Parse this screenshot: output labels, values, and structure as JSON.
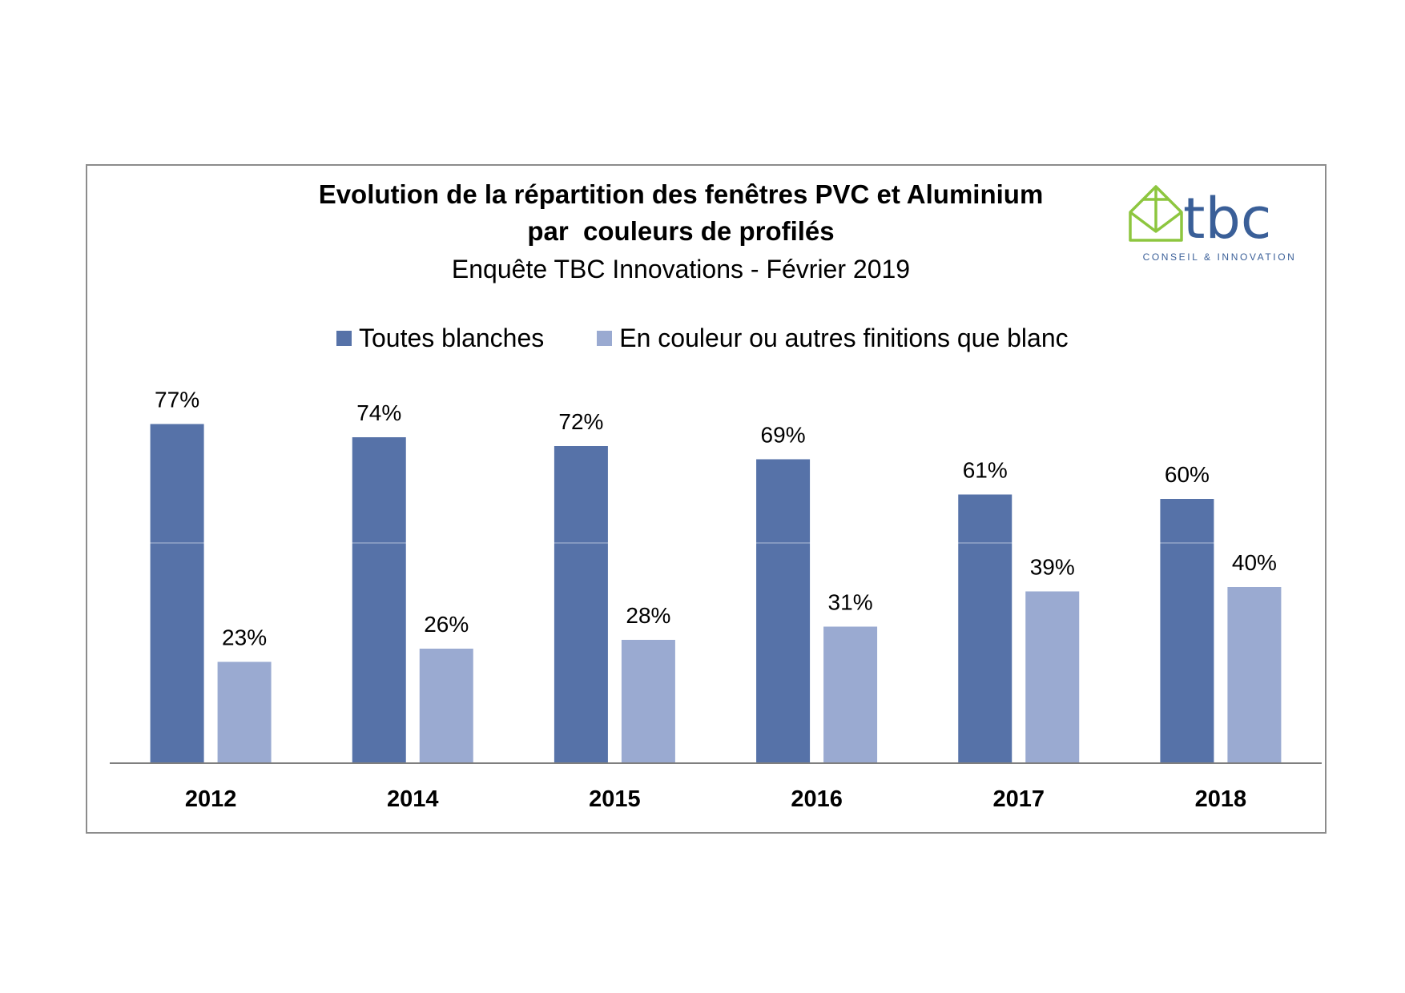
{
  "chart_data": {
    "type": "bar",
    "title": "Evolution de la répartition des fenêtres PVC et Aluminium",
    "title_line2": "par  couleurs de profilés",
    "subtitle": "Enquête TBC Innovations - Février 2019",
    "categories": [
      "2012",
      "2014",
      "2015",
      "2016",
      "2017",
      "2018"
    ],
    "series": [
      {
        "name": "Toutes blanches",
        "values": [
          77,
          74,
          72,
          69,
          61,
          60
        ],
        "labels": [
          "77%",
          "74%",
          "72%",
          "69%",
          "61%",
          "60%"
        ],
        "color": "#5672a8"
      },
      {
        "name": "En couleur ou autres finitions que blanc",
        "values": [
          23,
          26,
          28,
          31,
          39,
          40
        ],
        "labels": [
          "23%",
          "26%",
          "28%",
          "31%",
          "39%",
          "40%"
        ],
        "color": "#9aaad1"
      }
    ],
    "ylim": [
      0,
      100
    ],
    "gridlines": [
      50
    ],
    "legend": "top",
    "xlabel": "",
    "ylabel": ""
  },
  "logo": {
    "text": "tbc",
    "subtext": "CONSEIL & INNOVATION",
    "house_color": "#8dc63f",
    "text_color": "#3a5f98"
  }
}
